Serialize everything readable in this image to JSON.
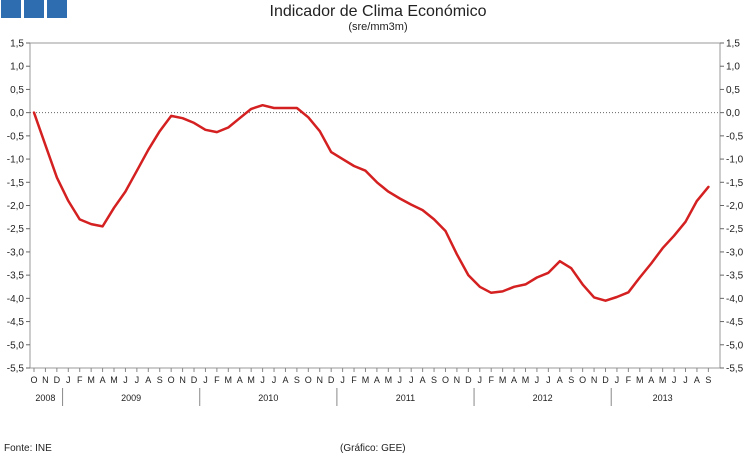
{
  "logo": {
    "squares": 3,
    "color": "#2e6db0"
  },
  "footer": {
    "source": "Fonte: INE",
    "credit": "(Gráfico: GEE)"
  },
  "chart_data": {
    "type": "line",
    "title": "Indicador de Clima Económico",
    "subtitle": "(sre/mm3m)",
    "xlabel": "",
    "ylabel": "",
    "ylim": [
      -5.5,
      1.5
    ],
    "ytick_step": 0.5,
    "y_tick_labels": [
      "1,5",
      "1,0",
      "0,5",
      "0,0",
      "-0,5",
      "-1,0",
      "-1,5",
      "-2,0",
      "-2,5",
      "-3,0",
      "-3,5",
      "-4,0",
      "-4,5",
      "-5,0",
      "-5,5"
    ],
    "y_axis_both_sides": true,
    "zero_line": true,
    "grid": false,
    "month_labels": [
      "O",
      "N",
      "D",
      "J",
      "F",
      "M",
      "A",
      "M",
      "J",
      "J",
      "A",
      "S",
      "O",
      "N",
      "D",
      "J",
      "F",
      "M",
      "A",
      "M",
      "J",
      "J",
      "A",
      "S",
      "O",
      "N",
      "D",
      "J",
      "F",
      "M",
      "A",
      "M",
      "J",
      "J",
      "A",
      "S",
      "O",
      "N",
      "D",
      "J",
      "F",
      "M",
      "A",
      "M",
      "J",
      "J",
      "A",
      "S",
      "O",
      "N",
      "D",
      "J",
      "F",
      "M",
      "A",
      "M",
      "J",
      "J",
      "A",
      "S"
    ],
    "years": [
      {
        "label": "2008",
        "months": 3
      },
      {
        "label": "2009",
        "months": 12
      },
      {
        "label": "2010",
        "months": 12
      },
      {
        "label": "2011",
        "months": 12
      },
      {
        "label": "2012",
        "months": 12
      },
      {
        "label": "2013",
        "months": 9
      }
    ],
    "series": [
      {
        "color": "#d42020",
        "values": [
          0.0,
          -0.7,
          -1.4,
          -1.9,
          -2.3,
          -2.4,
          -2.45,
          -2.05,
          -1.7,
          -1.25,
          -0.8,
          -0.4,
          -0.07,
          -0.12,
          -0.22,
          -0.37,
          -0.42,
          -0.32,
          -0.12,
          0.08,
          0.16,
          0.1,
          0.1,
          0.1,
          -0.1,
          -0.4,
          -0.85,
          -1.0,
          -1.15,
          -1.25,
          -1.5,
          -1.7,
          -1.85,
          -1.98,
          -2.1,
          -2.3,
          -2.55,
          -3.05,
          -3.5,
          -3.75,
          -3.88,
          -3.85,
          -3.75,
          -3.7,
          -3.55,
          -3.45,
          -3.2,
          -3.35,
          -3.7,
          -3.98,
          -4.05,
          -3.97,
          -3.87,
          -3.55,
          -3.25,
          -2.92,
          -2.65,
          -2.35,
          -1.9,
          -1.6
        ]
      }
    ]
  }
}
